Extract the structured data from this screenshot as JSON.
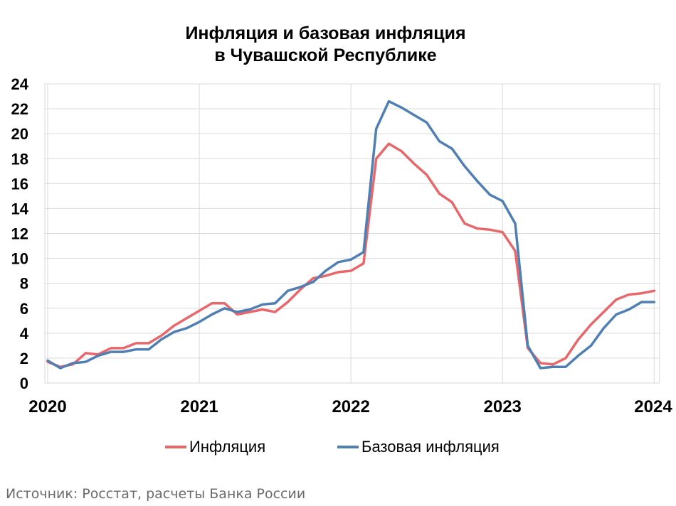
{
  "chart_data": {
    "type": "line",
    "title_line1": "Инфляция и базовая инфляция",
    "title_line2": "в Чувашской Республике",
    "xlabel": "",
    "ylabel": "",
    "ylim": [
      0,
      24
    ],
    "yticks": [
      "0",
      "2",
      "4",
      "6",
      "8",
      "10",
      "12",
      "14",
      "16",
      "18",
      "20",
      "22",
      "24"
    ],
    "xticks": [
      "2020",
      "2021",
      "2022",
      "2023",
      "2024"
    ],
    "grid": true,
    "legend_position": "bottom",
    "series": [
      {
        "name": "Инфляция",
        "color": "#e8676b",
        "x": [
          "2020-01",
          "2020-02",
          "2020-03",
          "2020-04",
          "2020-05",
          "2020-06",
          "2020-07",
          "2020-08",
          "2020-09",
          "2020-10",
          "2020-11",
          "2020-12",
          "2021-01",
          "2021-02",
          "2021-03",
          "2021-04",
          "2021-05",
          "2021-06",
          "2021-07",
          "2021-08",
          "2021-09",
          "2021-10",
          "2021-11",
          "2021-12",
          "2022-01",
          "2022-02",
          "2022-03",
          "2022-04",
          "2022-05",
          "2022-06",
          "2022-07",
          "2022-08",
          "2022-09",
          "2022-10",
          "2022-11",
          "2022-12",
          "2023-01",
          "2023-02",
          "2023-03",
          "2023-04",
          "2023-05",
          "2023-06",
          "2023-07",
          "2023-08",
          "2023-09",
          "2023-10",
          "2023-11",
          "2023-12",
          "2024-01"
        ],
        "values": [
          1.7,
          1.3,
          1.5,
          2.4,
          2.3,
          2.8,
          2.8,
          3.2,
          3.2,
          3.8,
          4.6,
          5.2,
          5.8,
          6.4,
          6.4,
          5.5,
          5.7,
          5.9,
          5.7,
          6.5,
          7.5,
          8.4,
          8.6,
          8.9,
          9.0,
          9.6,
          18.0,
          19.2,
          18.6,
          17.6,
          16.7,
          15.2,
          14.5,
          12.8,
          12.4,
          12.3,
          12.1,
          10.6,
          2.8,
          1.6,
          1.5,
          2.0,
          3.5,
          4.7,
          5.7,
          6.7,
          7.1,
          7.2,
          7.4
        ]
      },
      {
        "name": "Базовая инфляция",
        "color": "#4f7fb3",
        "x": [
          "2020-01",
          "2020-02",
          "2020-03",
          "2020-04",
          "2020-05",
          "2020-06",
          "2020-07",
          "2020-08",
          "2020-09",
          "2020-10",
          "2020-11",
          "2020-12",
          "2021-01",
          "2021-02",
          "2021-03",
          "2021-04",
          "2021-05",
          "2021-06",
          "2021-07",
          "2021-08",
          "2021-09",
          "2021-10",
          "2021-11",
          "2021-12",
          "2022-01",
          "2022-02",
          "2022-03",
          "2022-04",
          "2022-05",
          "2022-06",
          "2022-07",
          "2022-08",
          "2022-09",
          "2022-10",
          "2022-11",
          "2022-12",
          "2023-01",
          "2023-02",
          "2023-03",
          "2023-04",
          "2023-05",
          "2023-06",
          "2023-07",
          "2023-08",
          "2023-09",
          "2023-10",
          "2023-11",
          "2023-12",
          "2024-01"
        ],
        "values": [
          1.8,
          1.2,
          1.6,
          1.7,
          2.2,
          2.5,
          2.5,
          2.7,
          2.7,
          3.5,
          4.1,
          4.4,
          4.9,
          5.5,
          6.0,
          5.7,
          5.9,
          6.3,
          6.4,
          7.4,
          7.7,
          8.1,
          9.0,
          9.7,
          9.9,
          10.5,
          20.4,
          22.6,
          22.1,
          21.5,
          20.9,
          19.4,
          18.8,
          17.4,
          16.2,
          15.1,
          14.6,
          12.8,
          3.0,
          1.2,
          1.3,
          1.3,
          2.2,
          3.0,
          4.4,
          5.5,
          5.9,
          6.5,
          6.5
        ]
      }
    ]
  },
  "source": "Источник: Росстат, расчеты Банка России"
}
